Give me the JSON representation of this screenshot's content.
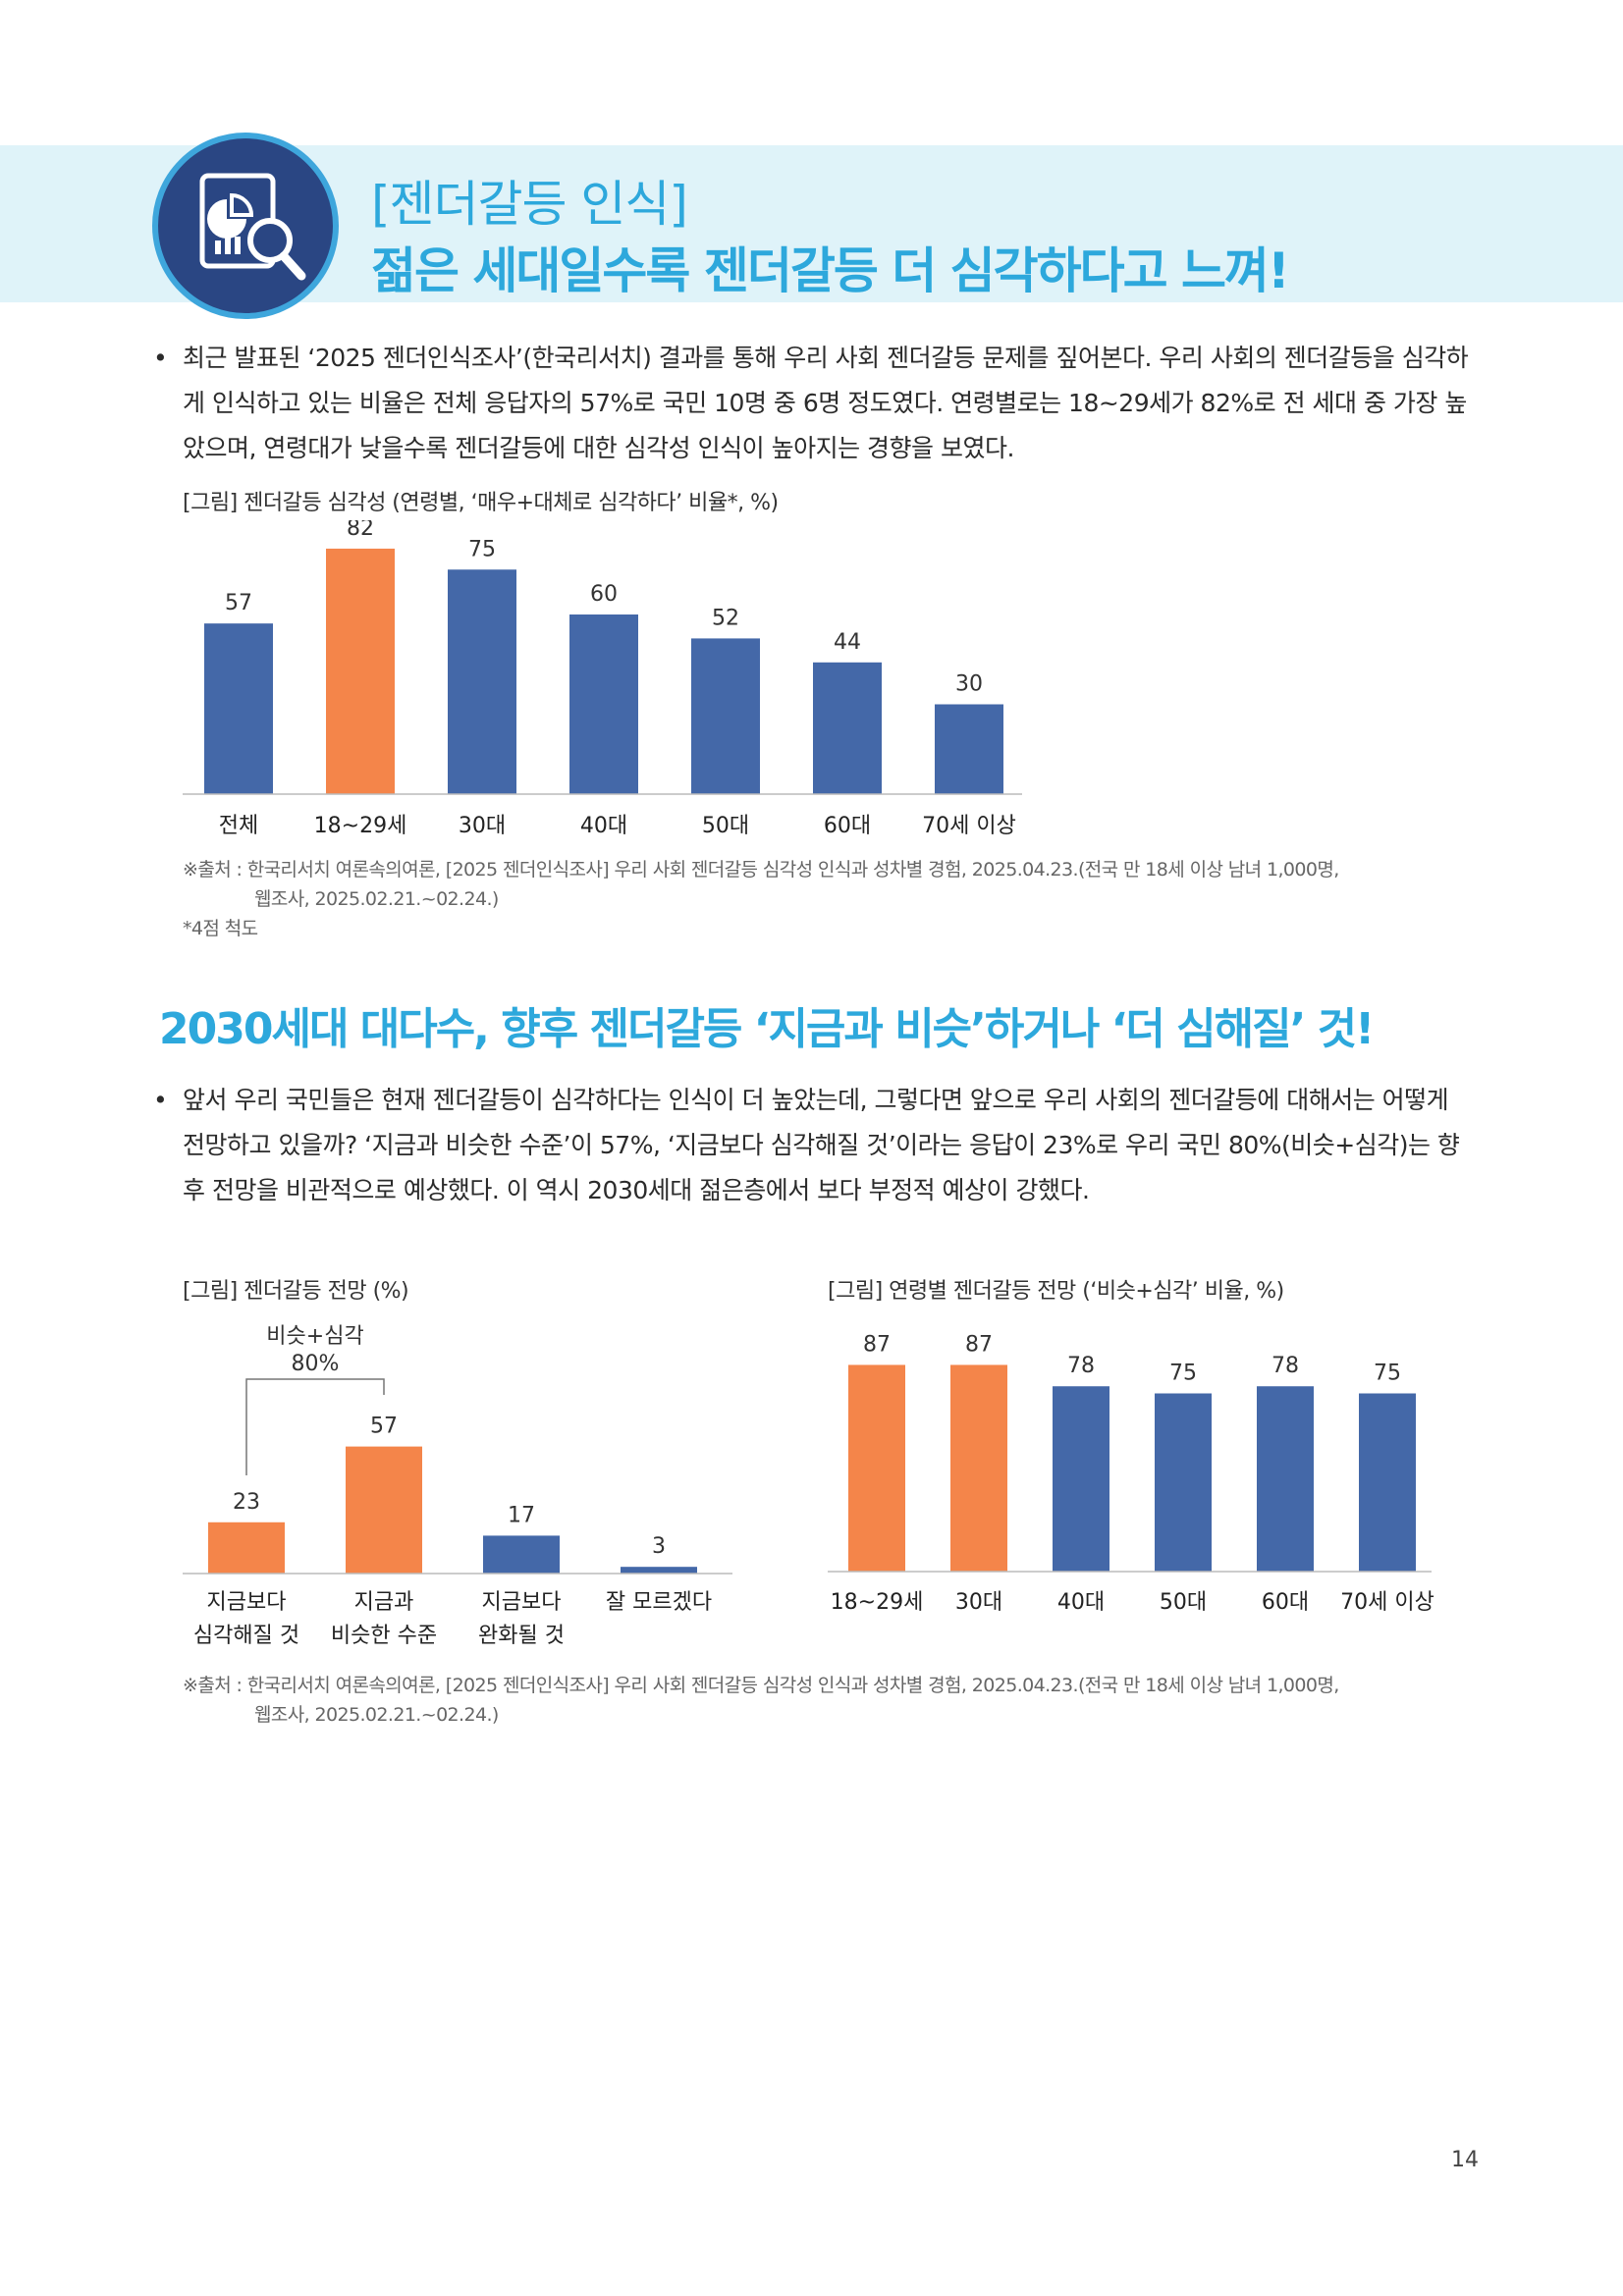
{
  "header": {
    "title": "[젠더갈등 인식]",
    "subtitle": "젊은 세대일수록 젠더갈등 더 심각하다고 느껴!"
  },
  "section1": {
    "bullet": "최근 발표된 ‘2025 젠더인식조사’(한국리서치) 결과를 통해 우리 사회 젠더갈등 문제를 짚어본다. 우리 사회의 젠더갈등을 심각하게 인식하고 있는 비율은 전체 응답자의 57%로 국민 10명 중 6명 정도였다. 연령별로는 18~29세가 82%로 전 세대 중 가장 높았으며, 연령대가 낮을수록 젠더갈등에 대한 심각성 인식이 높아지는 경향을 보였다.",
    "figure_caption": "[그림] 젠더갈등 심각성 (연령별, ‘매우+대체로 심각하다’ 비율*, %)",
    "source_line1": "※출처 : 한국리서치 여론속의여론, [2025 젠더인식조사] 우리 사회 젠더갈등 심각성 인식과 성차별 경험, 2025.04.23.(전국 만 18세 이상 남녀 1,000명,",
    "source_line2": "웹조사, 2025.02.21.~02.24.)",
    "footnote": "*4점 척도"
  },
  "section2": {
    "title": "2030세대 대다수, 향후 젠더갈등 ‘지금과 비슷’하거나 ‘더 심해질’ 것!",
    "bullet": "앞서 우리 국민들은 현재 젠더갈등이 심각하다는 인식이 더 높았는데, 그렇다면 앞으로 우리 사회의 젠더갈등에 대해서는 어떻게 전망하고 있을까? ‘지금과 비슷한 수준’이 57%, ‘지금보다 심각해질 것’이라는 응답이 23%로 우리 국민 80%(비슷+심각)는 향후 전망을 비관적으로 예상했다. 이 역시 2030세대 젊은층에서 보다 부정적 예상이 강했다.",
    "figure_caption_left": "[그림] 젠더갈등 전망 (%)",
    "figure_caption_right": "[그림] 연령별 젠더갈등 전망 (‘비슷+심각’ 비율, %)",
    "bracket_label_line1": "비슷+심각",
    "bracket_label_line2": "80%",
    "source_line1": "※출처 : 한국리서치 여론속의여론, [2025 젠더인식조사] 우리 사회 젠더갈등 심각성 인식과 성차별 경험, 2025.04.23.(전국 만 18세 이상 남녀 1,000명,",
    "source_line2": "웹조사, 2025.02.21.~02.24.)"
  },
  "page_number": "14",
  "colors": {
    "orange": "#f4854a",
    "blue": "#4468a8",
    "accent": "#2da8dc",
    "banner": "#dff3f9"
  },
  "chart_data": [
    {
      "type": "bar",
      "categories": [
        "전체",
        "18~29세",
        "30대",
        "40대",
        "50대",
        "60대",
        "70세 이상"
      ],
      "values": [
        57,
        82,
        75,
        60,
        52,
        44,
        30
      ],
      "highlight": [
        false,
        true,
        false,
        false,
        false,
        false,
        false
      ],
      "title": "[그림] 젠더갈등 심각성 (연령별, ‘매우+대체로 심각하다’ 비율*, %)"
    },
    {
      "type": "bar",
      "categories": [
        [
          "지금보다",
          "심각해질 것"
        ],
        [
          "지금과",
          "비슷한 수준"
        ],
        [
          "지금보다",
          "완화될 것"
        ],
        [
          "잘 모르겠다"
        ]
      ],
      "values": [
        23,
        57,
        17,
        3
      ],
      "highlight": [
        true,
        true,
        false,
        false
      ],
      "title": "[그림] 젠더갈등 전망 (%)"
    },
    {
      "type": "bar",
      "categories": [
        "18~29세",
        "30대",
        "40대",
        "50대",
        "60대",
        "70세 이상"
      ],
      "values": [
        87,
        87,
        78,
        75,
        78,
        75
      ],
      "highlight": [
        true,
        true,
        false,
        false,
        false,
        false
      ],
      "title": "[그림] 연령별 젠더갈등 전망 (‘비슷+심각’ 비율, %)"
    }
  ]
}
